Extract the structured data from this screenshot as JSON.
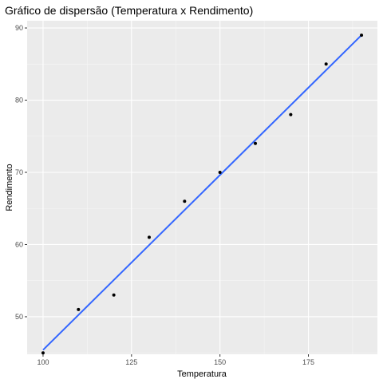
{
  "chart_data": {
    "type": "scatter",
    "title": "Gráfico de dispersão (Temperatura x Rendimento)",
    "xlabel": "Temperatura",
    "ylabel": "Rendimento",
    "xlim": [
      95.5,
      194.5
    ],
    "ylim": [
      44.8,
      91.0
    ],
    "xticks": [
      100,
      125,
      150,
      175
    ],
    "yticks": [
      50,
      60,
      70,
      80,
      90
    ],
    "grid": true,
    "legend": "none",
    "series": [
      {
        "values_x": [
          100,
          110,
          120,
          130,
          140,
          150,
          160,
          170,
          180,
          190
        ],
        "values_y": [
          45,
          51,
          53,
          61,
          66,
          70,
          74,
          78,
          85,
          89
        ],
        "color": "#000000"
      }
    ],
    "fit_line": {
      "method": "lm",
      "x": [
        100,
        190
      ],
      "y": [
        45.4,
        89.0
      ],
      "color": "#3366FF"
    },
    "panel_background": "#EBEBEB"
  }
}
